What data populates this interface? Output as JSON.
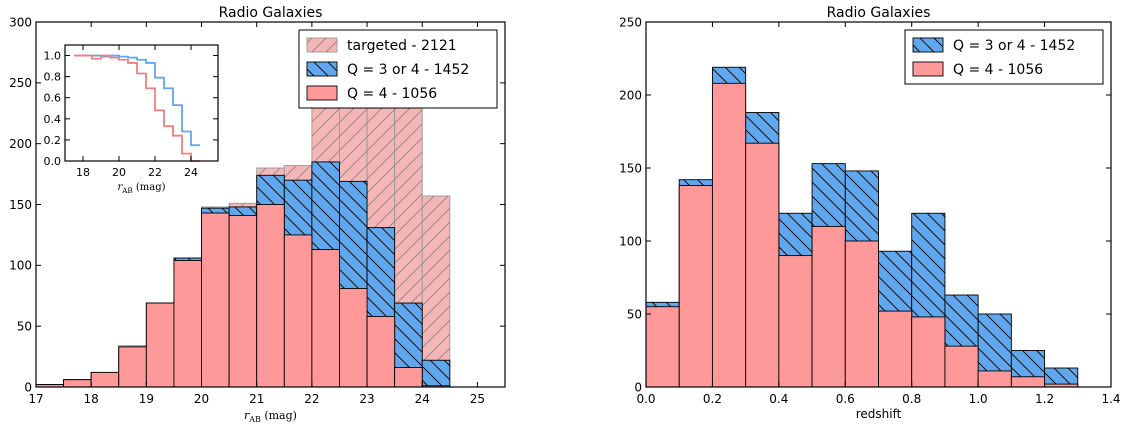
{
  "chart_data": [
    {
      "type": "bar",
      "title": "Radio Galaxies",
      "xlabel": "r_AB (mag)",
      "ylabel": "",
      "xlim": [
        17,
        25.5
      ],
      "ylim": [
        0,
        300
      ],
      "xticks": [
        17,
        18,
        19,
        20,
        21,
        22,
        23,
        24,
        25
      ],
      "yticks": [
        0,
        50,
        100,
        150,
        200,
        250,
        300
      ],
      "bin_width": 0.5,
      "bin_left_edges": [
        17.0,
        17.5,
        18.0,
        18.5,
        19.0,
        19.5,
        20.0,
        20.5,
        21.0,
        21.5,
        22.0,
        22.5,
        23.0,
        23.5,
        24.0
      ],
      "legend_position": "top-right",
      "series": [
        {
          "name": "targeted - 2121",
          "color": "#f4b6b6",
          "hatch": "/",
          "values": [
            2,
            6,
            12,
            34,
            69,
            106,
            148,
            151,
            180,
            182,
            233,
            245,
            245,
            246,
            157
          ]
        },
        {
          "name": "Q = 3 or 4 - 1452",
          "color": "#5fa8f0",
          "hatch": "\\",
          "values": [
            2,
            6,
            12,
            33,
            69,
            106,
            147,
            148,
            174,
            170,
            185,
            169,
            131,
            69,
            22
          ]
        },
        {
          "name": "Q = 4 - 1056",
          "color": "#ff9999",
          "hatch": "",
          "values": [
            2,
            6,
            12,
            33,
            69,
            104,
            143,
            141,
            150,
            125,
            113,
            81,
            58,
            16,
            1
          ]
        }
      ],
      "inset": {
        "type": "line",
        "xlabel": "r_AB (mag)",
        "xlim": [
          17,
          25.5
        ],
        "ylim": [
          0,
          1.1
        ],
        "xticks": [
          18,
          20,
          22,
          24
        ],
        "yticks": [
          0.0,
          0.2,
          0.4,
          0.6,
          0.8,
          1.0
        ],
        "step_edges": [
          17.5,
          18.0,
          18.5,
          19.0,
          19.5,
          20.0,
          20.5,
          21.0,
          21.5,
          22.0,
          22.5,
          23.0,
          23.5,
          24.0,
          24.5
        ],
        "series": [
          {
            "color": "#5fa8f0",
            "values": [
              1.0,
              1.0,
              1.0,
              0.99,
              1.0,
              0.99,
              0.98,
              0.96,
              0.93,
              0.79,
              0.69,
              0.53,
              0.28,
              0.15
            ]
          },
          {
            "color": "#f08080",
            "values": [
              1.0,
              1.0,
              0.97,
              1.0,
              0.98,
              0.96,
              0.93,
              0.83,
              0.69,
              0.48,
              0.33,
              0.24,
              0.07,
              0.0
            ]
          }
        ]
      }
    },
    {
      "type": "bar",
      "title": "Radio Galaxies",
      "xlabel": "redshift",
      "ylabel": "",
      "xlim": [
        0,
        1.4
      ],
      "ylim": [
        0,
        250
      ],
      "xticks": [
        0.0,
        0.2,
        0.4,
        0.6,
        0.8,
        1.0,
        1.2,
        1.4
      ],
      "yticks": [
        0,
        50,
        100,
        150,
        200,
        250
      ],
      "bin_width": 0.1,
      "bin_left_edges": [
        0.0,
        0.1,
        0.2,
        0.3,
        0.4,
        0.5,
        0.6,
        0.7,
        0.8,
        0.9,
        1.0,
        1.1,
        1.2
      ],
      "legend_position": "top-right",
      "series": [
        {
          "name": "Q = 3 or 4 - 1452",
          "color": "#5fa8f0",
          "hatch": "\\",
          "values": [
            58,
            142,
            219,
            188,
            119,
            153,
            148,
            93,
            119,
            63,
            50,
            25,
            13
          ]
        },
        {
          "name": "Q = 4 - 1056",
          "color": "#ff9999",
          "hatch": "",
          "values": [
            55,
            138,
            208,
            167,
            90,
            110,
            100,
            52,
            48,
            28,
            11,
            7,
            2
          ]
        }
      ]
    }
  ]
}
